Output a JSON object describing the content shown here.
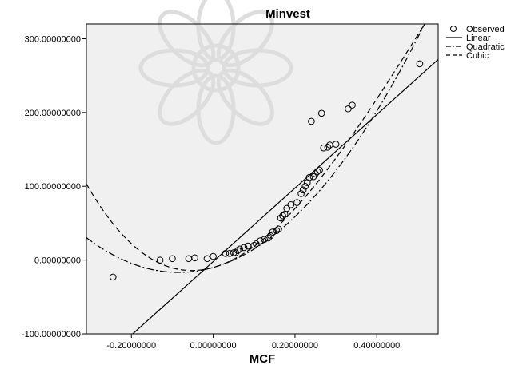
{
  "chart_data": {
    "type": "scatter",
    "title": "Minvest",
    "xlabel": "MCF",
    "ylabel": "",
    "xlim": [
      -0.31,
      0.55
    ],
    "ylim": [
      -100,
      320
    ],
    "grid": false,
    "legend_placement": "top-right",
    "x_ticks": [
      -0.2,
      0.0,
      0.2,
      0.4
    ],
    "x_tick_labels": [
      "-0.20000000",
      "0.00000000",
      "0.20000000",
      "0.40000000"
    ],
    "y_ticks": [
      -100,
      0,
      100,
      200,
      300
    ],
    "y_tick_labels": [
      "-100.00000000",
      "0.00000000",
      "100.00000000",
      "200.00000000",
      "300.00000000"
    ],
    "legend": [
      {
        "label": "Observed",
        "kind": "circle"
      },
      {
        "label": "Linear",
        "kind": "solid"
      },
      {
        "label": "Quadratic",
        "kind": "dashdot"
      },
      {
        "label": "Cubic",
        "kind": "dashed"
      }
    ],
    "observed": [
      [
        -0.245,
        -23
      ],
      [
        -0.13,
        0
      ],
      [
        -0.1,
        2
      ],
      [
        -0.06,
        2
      ],
      [
        -0.045,
        3
      ],
      [
        -0.015,
        2
      ],
      [
        0.0,
        5
      ],
      [
        0.03,
        9
      ],
      [
        0.04,
        9
      ],
      [
        0.05,
        10
      ],
      [
        0.055,
        10
      ],
      [
        0.06,
        13
      ],
      [
        0.065,
        15
      ],
      [
        0.075,
        17
      ],
      [
        0.085,
        19
      ],
      [
        0.1,
        20
      ],
      [
        0.105,
        22
      ],
      [
        0.115,
        26
      ],
      [
        0.125,
        28
      ],
      [
        0.135,
        30
      ],
      [
        0.14,
        33
      ],
      [
        0.145,
        38
      ],
      [
        0.155,
        40
      ],
      [
        0.16,
        42
      ],
      [
        0.165,
        57
      ],
      [
        0.17,
        60
      ],
      [
        0.175,
        62
      ],
      [
        0.18,
        70
      ],
      [
        0.19,
        75
      ],
      [
        0.205,
        78
      ],
      [
        0.215,
        90
      ],
      [
        0.22,
        95
      ],
      [
        0.225,
        100
      ],
      [
        0.23,
        105
      ],
      [
        0.235,
        112
      ],
      [
        0.24,
        188
      ],
      [
        0.245,
        113
      ],
      [
        0.25,
        117
      ],
      [
        0.255,
        120
      ],
      [
        0.26,
        122
      ],
      [
        0.265,
        199
      ],
      [
        0.27,
        152
      ],
      [
        0.28,
        153
      ],
      [
        0.285,
        156
      ],
      [
        0.3,
        157
      ],
      [
        0.33,
        205
      ],
      [
        0.34,
        210
      ],
      [
        0.505,
        266
      ]
    ],
    "models": {
      "linear": {
        "type": "linear",
        "intercept": -2,
        "slope": 498
      },
      "quadratic": {
        "type": "quadratic",
        "coefficients": [
          -10,
          158,
          930
        ]
      },
      "cubic": {
        "type": "cubic",
        "coefficients": [
          -10,
          155,
          1400,
          -900
        ]
      }
    }
  }
}
